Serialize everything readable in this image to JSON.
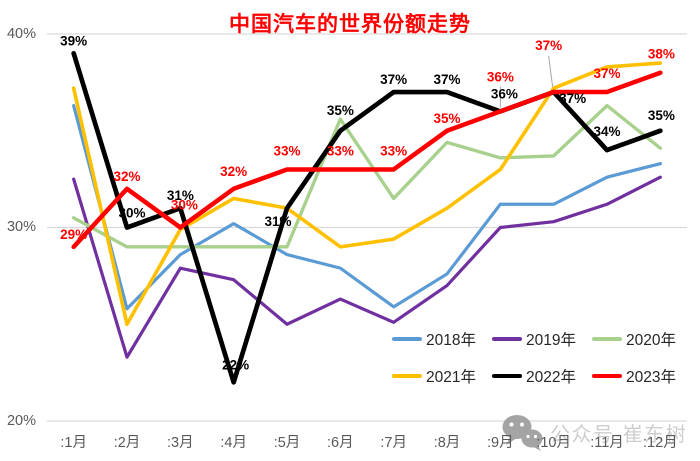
{
  "chart_data": {
    "type": "line",
    "title": "中国汽车的世界份额走势",
    "title_color": "#FF0000",
    "xlabel": "",
    "ylabel": "",
    "x_categories": [
      ":1月",
      ":2月",
      ":3月",
      ":4月",
      ":5月",
      ":6月",
      ":7月",
      ":8月",
      ":9月",
      ":10月",
      ":11月",
      ":12月"
    ],
    "y_ticks": [
      40,
      30,
      20
    ],
    "y_tick_labels": [
      "40%",
      "30%",
      "20%"
    ],
    "ylim": [
      20,
      40
    ],
    "grid": true,
    "legend_position": "inside-bottom-right",
    "series": [
      {
        "name": "2018年",
        "color": "#5B9BD5",
        "values": [
          36.3,
          25.8,
          28.6,
          30.2,
          28.6,
          27.9,
          25.9,
          27.6,
          31.2,
          31.2,
          32.6,
          33.3
        ]
      },
      {
        "name": "2019年",
        "color": "#7030A0",
        "values": [
          32.5,
          23.3,
          27.9,
          27.3,
          25.0,
          26.3,
          25.1,
          27.0,
          30.0,
          30.3,
          31.2,
          32.6
        ]
      },
      {
        "name": "2020年",
        "color": "#A9D18E",
        "values": [
          30.5,
          29.0,
          29.0,
          29.0,
          29.0,
          35.6,
          31.5,
          34.4,
          33.6,
          33.7,
          36.3,
          34.1
        ]
      },
      {
        "name": "2021年",
        "color": "#FFC000",
        "values": [
          37.2,
          25.0,
          29.9,
          31.5,
          31.0,
          29.0,
          29.4,
          31.0,
          33.0,
          37.2,
          38.3,
          38.5
        ]
      },
      {
        "name": "2022年",
        "color": "#000000",
        "values": [
          39,
          30,
          31,
          22,
          31,
          35,
          37,
          37,
          36,
          37,
          34,
          35
        ],
        "point_labels": [
          "39%",
          "30%",
          "31%",
          "22%",
          "31%",
          "35%",
          "37%",
          "37%",
          "36%",
          "37%",
          "34%",
          "35%"
        ]
      },
      {
        "name": "2023年",
        "color": "#FF0000",
        "values": [
          29,
          32,
          30,
          32,
          33,
          33,
          33,
          35,
          36,
          37,
          37,
          38
        ],
        "point_labels": [
          "29%",
          "32%",
          "30%",
          "32%",
          "33%",
          "33%",
          "33%",
          "35%",
          "36%",
          "37%",
          "37%",
          "38%"
        ]
      }
    ]
  },
  "watermark": {
    "text": "公众号·崔东树"
  }
}
